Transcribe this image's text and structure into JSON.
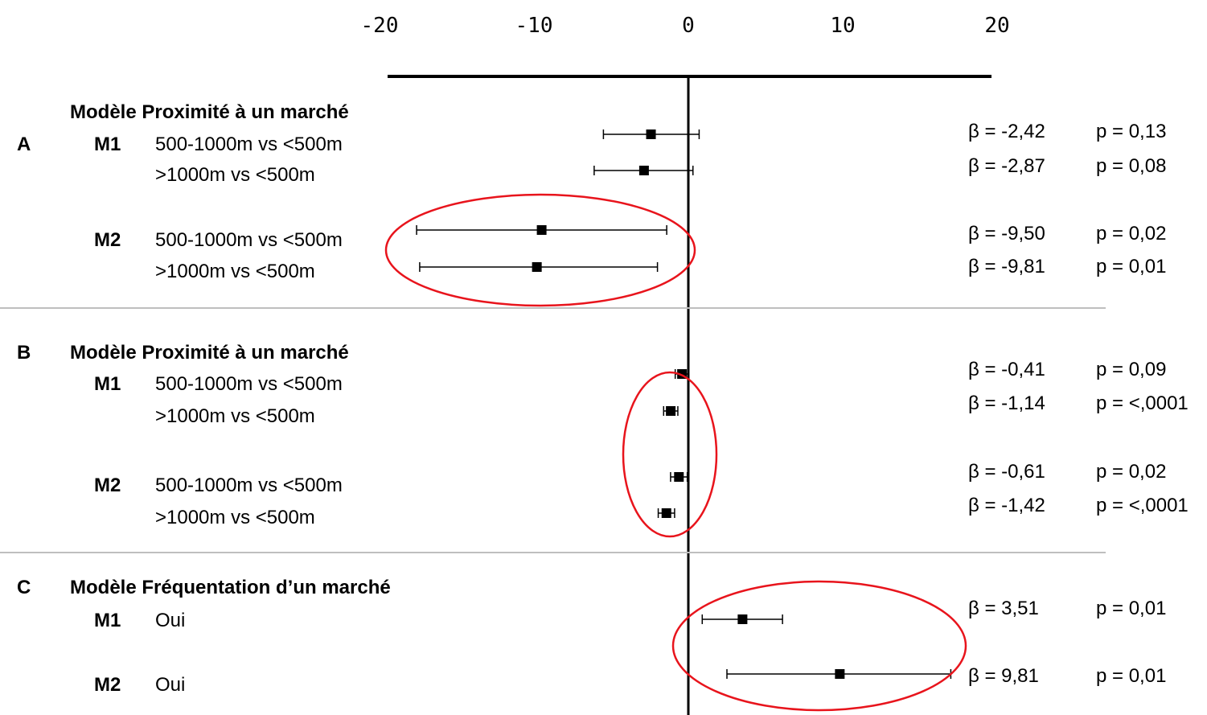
{
  "chart_data": {
    "type": "forest",
    "xaxis": {
      "ticks": [
        -20,
        -10,
        0,
        10,
        20
      ],
      "range": [
        -20,
        20
      ]
    },
    "sections": [
      {
        "letter": "A",
        "title": "Modèle Proximité à un marché",
        "models": [
          {
            "name": "M1",
            "rows": [
              {
                "label": "500-1000m vs <500m",
                "estimate": -2.42,
                "ci": [
                  -5.5,
                  0.7
                ],
                "beta": "β = -2,42",
                "p": "p = 0,13"
              },
              {
                "label": ">1000m vs <500m",
                "estimate": -2.87,
                "ci": [
                  -6.1,
                  0.3
                ],
                "beta": "β = -2,87",
                "p": "p = 0,08"
              }
            ]
          },
          {
            "name": "M2",
            "rows": [
              {
                "label": "500-1000m vs <500m",
                "estimate": -9.5,
                "ci": [
                  -17.6,
                  -1.4
                ],
                "beta": "β = -9,50",
                "p": "p = 0,02"
              },
              {
                "label": ">1000m vs <500m",
                "estimate": -9.81,
                "ci": [
                  -17.4,
                  -2.0
                ],
                "beta": "β = -9,81",
                "p": "p = 0,01"
              }
            ]
          }
        ]
      },
      {
        "letter": "B",
        "title": "Modèle Proximité à un marché",
        "models": [
          {
            "name": "M1",
            "rows": [
              {
                "label": "500-1000m vs <500m",
                "estimate": -0.41,
                "ci": [
                  -0.85,
                  0.03
                ],
                "beta": "β = -0,41",
                "p": "p = 0,09"
              },
              {
                "label": ">1000m vs <500m",
                "estimate": -1.14,
                "ci": [
                  -1.6,
                  -0.68
                ],
                "beta": "β = -1,14",
                "p": "p = <,0001"
              }
            ]
          },
          {
            "name": "M2",
            "rows": [
              {
                "label": "500-1000m vs <500m",
                "estimate": -0.61,
                "ci": [
                  -1.15,
                  -0.07
                ],
                "beta": "β = -0,61",
                "p": "p = 0,02"
              },
              {
                "label": ">1000m vs <500m",
                "estimate": -1.42,
                "ci": [
                  -1.95,
                  -0.89
                ],
                "beta": "β = -1,42",
                "p": "p = <,0001"
              }
            ]
          }
        ]
      },
      {
        "letter": "C",
        "title": "Modèle Fréquentation d’un marché",
        "models": [
          {
            "name": "M1",
            "rows": [
              {
                "label": "Oui",
                "estimate": 3.51,
                "ci": [
                  0.9,
                  6.1
                ],
                "beta": "β = 3,51",
                "p": "p = 0,01"
              }
            ]
          },
          {
            "name": "M2",
            "rows": [
              {
                "label": "Oui",
                "estimate": 9.81,
                "ci": [
                  2.5,
                  17.0
                ],
                "beta": "β = 9,81",
                "p": "p = 0,01"
              }
            ]
          }
        ]
      }
    ],
    "highlight_color": "#e8141c",
    "grid": false,
    "legend": "none"
  }
}
